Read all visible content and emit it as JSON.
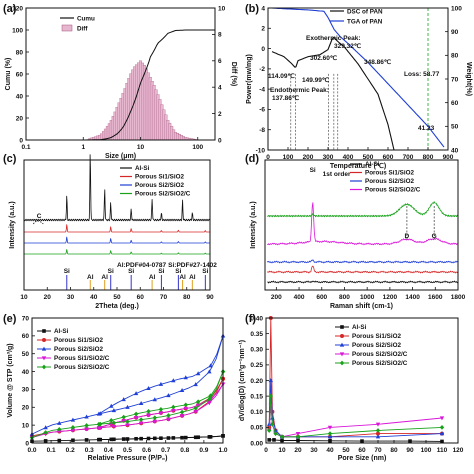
{
  "figure": {
    "panels": [
      {
        "id": "a",
        "label": "(a)"
      },
      {
        "id": "b",
        "label": "(b)"
      },
      {
        "id": "c",
        "label": "(c)"
      },
      {
        "id": "d",
        "label": "(d)"
      },
      {
        "id": "e",
        "label": "(e)"
      },
      {
        "id": "f",
        "label": "(f)"
      }
    ]
  },
  "chart_data": [
    {
      "panel": "a",
      "type": "line",
      "xlabel": "Size (μm)",
      "ylabel": "Cumu (%)",
      "y2label": "Diff (%)",
      "xscale": "log",
      "xlim": [
        0.1,
        200
      ],
      "ylim": [
        0,
        120
      ],
      "y2lim": [
        0,
        10
      ],
      "xticks": [
        "0.1",
        "1",
        "10",
        "100"
      ],
      "yticks": [
        "0",
        "20",
        "40",
        "60",
        "80",
        "100",
        "120"
      ],
      "y2ticks": [
        "0",
        "2",
        "4",
        "6",
        "8",
        "10"
      ],
      "legend": [
        "Cumu",
        "Diff"
      ],
      "series": [
        {
          "name": "Cumu",
          "x": [
            0.1,
            1,
            2,
            3,
            4,
            5,
            6,
            8,
            10,
            15,
            20,
            30,
            40,
            60,
            100,
            200
          ],
          "y": [
            0,
            0,
            0.3,
            2,
            6,
            12,
            20,
            36,
            52,
            76,
            88,
            97,
            99.5,
            100,
            100,
            100
          ]
        },
        {
          "name": "Diff",
          "x": [
            1,
            2,
            3,
            4,
            5,
            6,
            7,
            8,
            10,
            12,
            15,
            20,
            25,
            30,
            40,
            60,
            100
          ],
          "y": [
            0,
            0.4,
            1.4,
            2.6,
            3.6,
            4.5,
            5.2,
            5.6,
            6.0,
            5.6,
            4.7,
            3.5,
            2.4,
            1.5,
            0.6,
            0.2,
            0
          ]
        }
      ]
    },
    {
      "panel": "b",
      "type": "line",
      "xlabel": "Temperature (℃)",
      "ylabel": "Power(mw/mg)",
      "y2label": "Weight(%)",
      "xlim": [
        0,
        900
      ],
      "ylim": [
        -10,
        4
      ],
      "y2lim": [
        40,
        100
      ],
      "xticks": [
        "0",
        "100",
        "200",
        "300",
        "400",
        "500",
        "600",
        "700",
        "800",
        "900"
      ],
      "yticks": [
        "-10",
        "-8",
        "-6",
        "-4",
        "-2",
        "0",
        "2",
        "4"
      ],
      "y2ticks": [
        "40",
        "50",
        "60",
        "70",
        "80",
        "90",
        "100"
      ],
      "legend": [
        "DSC of PAN",
        "TGA of PAN"
      ],
      "annotations": [
        "Exothermic Peak:",
        "329.32℃",
        "302.60℃",
        "348.86℃",
        "114.09℃",
        "149.99℃",
        "Endothermic Peak:",
        "137.86℃",
        "Loss: 58.77",
        "41.23"
      ],
      "series": [
        {
          "name": "DSC of PAN",
          "x": [
            20,
            80,
            114,
            138,
            150,
            200,
            260,
            300,
            320,
            329,
            349,
            380,
            450,
            550,
            600,
            630
          ],
          "y": [
            -0.3,
            -0.8,
            -1.4,
            -1.9,
            -1.2,
            -0.8,
            -0.6,
            -0.1,
            0.9,
            1.1,
            0.7,
            0.2,
            -1.5,
            -4.5,
            -7.5,
            -10
          ]
        },
        {
          "name": "TGA of PAN",
          "x": [
            20,
            100,
            200,
            280,
            300,
            330,
            360,
            400,
            500,
            600,
            700,
            800,
            880
          ],
          "y": [
            100,
            99.6,
            99.2,
            98.6,
            96,
            91,
            88,
            85,
            77,
            68,
            59,
            50,
            41.23
          ]
        }
      ]
    },
    {
      "panel": "c",
      "type": "line",
      "xlabel": "2Theta (deg.)",
      "ylabel": "Intensity (a.u.)",
      "xlim": [
        10,
        90
      ],
      "xticks": [
        "10",
        "20",
        "30",
        "40",
        "50",
        "60",
        "70",
        "80",
        "90"
      ],
      "legend": [
        "Al-Si",
        "Porous Si1/SiO2",
        "Porous Si2/SiO2",
        "Porous Si2/SiO2/C"
      ],
      "annotations": [
        "C",
        "Al:PDF#04-0787",
        "Si:PDF#27-1402"
      ],
      "reference_peaks": {
        "Si": [
          28.4,
          47.3,
          56.1,
          69.1,
          76.4,
          88.0
        ],
        "Al": [
          38.5,
          44.7,
          65.1,
          78.2,
          82.4
        ]
      },
      "series": [
        {
          "name": "Al-Si",
          "peaks": [
            28.4,
            38.5,
            44.7,
            47.3,
            56.1,
            65.1,
            69.1,
            78.2,
            82.4
          ],
          "heights": [
            0.35,
            1.0,
            0.45,
            0.25,
            0.15,
            0.3,
            0.1,
            0.28,
            0.1
          ]
        },
        {
          "name": "Porous Si1/SiO2",
          "peaks": [
            28.4,
            47.3,
            56.1,
            69.1,
            76.4,
            88.0
          ],
          "heights": [
            0.5,
            0.35,
            0.22,
            0.1,
            0.12,
            0.1
          ]
        },
        {
          "name": "Porous Si2/SiO2",
          "peaks": [
            28.4,
            47.3,
            56.1,
            69.1,
            76.4,
            88.0
          ],
          "heights": [
            0.4,
            0.3,
            0.18,
            0.08,
            0.1,
            0.08
          ]
        },
        {
          "name": "Porous Si2/SiO2/C",
          "peaks": [
            28.4,
            47.3,
            56.1,
            69.1,
            76.4,
            88.0
          ],
          "heights": [
            0.3,
            0.22,
            0.14,
            0.06,
            0.08,
            0.06
          ]
        }
      ]
    },
    {
      "panel": "d",
      "type": "line",
      "xlabel": "Raman shift (cm-1)",
      "ylabel": "Intensity (a.u.)",
      "xlim": [
        100,
        1800
      ],
      "xticks": [
        "200",
        "400",
        "600",
        "800",
        "1000",
        "1200",
        "1400",
        "1600",
        "1800"
      ],
      "legend": [
        "Al-Si",
        "Porous Si1/SiO2",
        "Porous Si2/SiO2",
        "Porous Si2/SiO2/C"
      ],
      "annotations": [
        "Si",
        "1st order",
        "D",
        "G"
      ],
      "series": [
        {
          "name": "Al-Si",
          "peaks": [
            520
          ],
          "heights": [
            0.1
          ]
        },
        {
          "name": "Porous Si1/SiO2",
          "peaks": [
            520
          ],
          "heights": [
            0.25
          ]
        },
        {
          "name": "Porous Si2/SiO2",
          "peaks": [
            520
          ],
          "heights": [
            0.15
          ]
        },
        {
          "name": "Porous Si2/SiO2/C",
          "peaks": [
            520,
            1350,
            1590
          ],
          "heights": [
            1.0,
            0.12,
            0.13
          ]
        }
      ]
    },
    {
      "panel": "e",
      "type": "line",
      "xlabel": "Relative Pressure (P/P₀)",
      "ylabel": "Volume @ STP (cm³/g)",
      "xlim": [
        0,
        1
      ],
      "ylim": [
        0,
        70
      ],
      "xticks": [
        "0.0",
        "0.1",
        "0.2",
        "0.3",
        "0.4",
        "0.5",
        "0.6",
        "0.7",
        "0.8",
        "0.9",
        "1.0"
      ],
      "yticks": [
        "0",
        "10",
        "20",
        "30",
        "40",
        "50",
        "60",
        "70"
      ],
      "legend": [
        "Al-Si",
        "Porous Si1/SiO2",
        "Porous Si2/SiO2",
        "Porous Si1/SiO2/C",
        "Porous Si2/SiO2/C"
      ],
      "series": [
        {
          "name": "Al-Si",
          "x": [
            0,
            0.2,
            0.4,
            0.6,
            0.8,
            0.95,
            1.0
          ],
          "y": [
            1,
            1.5,
            2,
            2.5,
            3,
            3.5,
            4
          ]
        },
        {
          "name": "Porous Si1/SiO2",
          "x": [
            0,
            0.1,
            0.3,
            0.5,
            0.7,
            0.85,
            0.95,
            1.0
          ],
          "y": [
            4,
            6,
            8,
            10,
            13,
            17,
            25,
            36
          ]
        },
        {
          "name": "Porous Si2/SiO2",
          "x": [
            0,
            0.1,
            0.3,
            0.5,
            0.7,
            0.85,
            0.95,
            1.0
          ],
          "y": [
            5,
            10,
            15,
            20,
            26,
            32,
            42,
            60
          ]
        },
        {
          "name": "Porous Si1/SiO2/C",
          "x": [
            0,
            0.1,
            0.3,
            0.5,
            0.7,
            0.85,
            0.95,
            1.0
          ],
          "y": [
            3,
            6,
            8,
            10,
            13,
            17,
            24,
            33
          ]
        },
        {
          "name": "Porous Si2/SiO2/C",
          "x": [
            0,
            0.1,
            0.3,
            0.5,
            0.7,
            0.85,
            0.95,
            1.0
          ],
          "y": [
            3,
            7,
            10,
            12,
            15,
            19,
            26,
            40
          ]
        }
      ]
    },
    {
      "panel": "f",
      "type": "line",
      "xlabel": "Pore Size (nm)",
      "ylabel": "dV/dlog(D) (cm³g⁻¹nm⁻¹)",
      "xlim": [
        0,
        120
      ],
      "ylim": [
        0,
        0.4
      ],
      "xticks": [
        "0",
        "10",
        "20",
        "30",
        "40",
        "50",
        "60",
        "70",
        "80",
        "90",
        "100",
        "110",
        "120"
      ],
      "yticks": [
        "0.00",
        "0.05",
        "0.10",
        "0.15",
        "0.20",
        "0.25",
        "0.30",
        "0.35",
        "0.40"
      ],
      "legend": [
        "Al-Si",
        "Porous Si1/SiO2",
        "Porous Si2/SiO2",
        "Porous Si2/SiO2/C",
        "Porous Si2/SiO2/C"
      ],
      "series": [
        {
          "name": "Al-Si",
          "x": [
            2,
            5,
            10,
            20,
            40,
            60,
            90,
            110
          ],
          "y": [
            0.01,
            0.01,
            0.008,
            0.008,
            0.007,
            0.006,
            0.006,
            0.005
          ]
        },
        {
          "name": "Porous Si1/SiO2",
          "x": [
            2,
            3,
            4,
            6,
            10,
            20,
            40,
            70,
            110
          ],
          "y": [
            0.05,
            0.4,
            0.1,
            0.04,
            0.02,
            0.02,
            0.02,
            0.03,
            0.03
          ]
        },
        {
          "name": "Porous Si2/SiO2",
          "x": [
            2,
            3,
            4,
            6,
            10,
            20,
            40,
            70,
            110
          ],
          "y": [
            0.06,
            0.2,
            0.08,
            0.04,
            0.02,
            0.02,
            0.02,
            0.02,
            0.03
          ]
        },
        {
          "name": "Porous Si2/SiO2/C",
          "x": [
            2,
            3,
            4,
            6,
            10,
            20,
            40,
            70,
            110
          ],
          "y": [
            0.04,
            0.12,
            0.06,
            0.03,
            0.02,
            0.03,
            0.05,
            0.06,
            0.08
          ]
        },
        {
          "name": "Porous Si2/SiO2/C",
          "x": [
            2,
            3,
            4,
            6,
            10,
            20,
            40,
            70,
            110
          ],
          "y": [
            0.04,
            0.15,
            0.06,
            0.03,
            0.02,
            0.02,
            0.03,
            0.04,
            0.05
          ]
        }
      ]
    }
  ],
  "colors": {
    "black": "#111111",
    "red": "#d62728",
    "blue": "#1f3fd6",
    "magenta": "#d916d9",
    "green": "#18a21a",
    "hist": "#e7b6cf",
    "histEdge": "#a3537a",
    "xrdSi": "#3333cc",
    "xrdAl": "#e0a020"
  }
}
